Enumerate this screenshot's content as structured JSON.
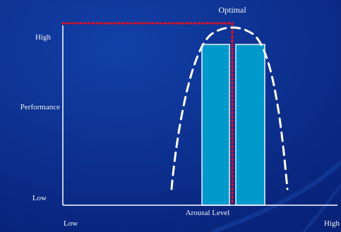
{
  "labels": {
    "optimal": "Optimal",
    "y_high": "High",
    "y_axis": "Performance",
    "y_low": "Low",
    "x_axis": "Arousal Level",
    "x_low": "Low",
    "x_high": "High"
  },
  "colors": {
    "background": "#0a2a88",
    "bar_fill": "#0099cc",
    "bar_stroke": "#e8f4ff",
    "axis": "#ffffff",
    "curve": "#ffffff",
    "guide_dotted": "#e01020",
    "text": "#f2f2f2"
  }
}
